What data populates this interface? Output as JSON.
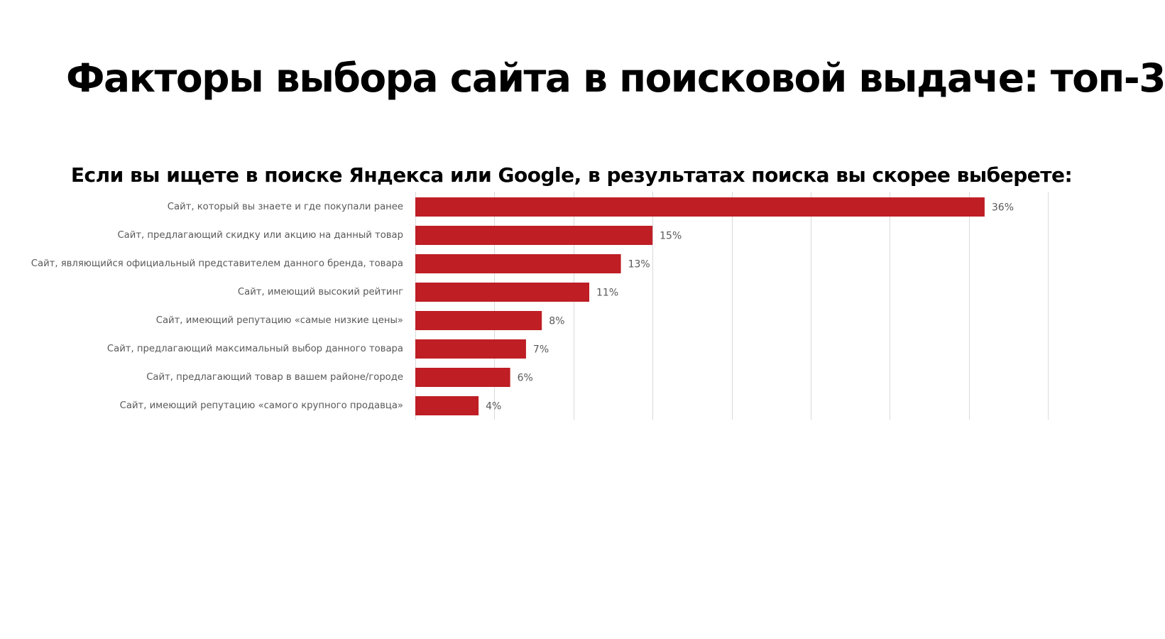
{
  "slide": {
    "title": "Факторы выбора сайта в поисковой выдаче: топ-3"
  },
  "chart_data": {
    "type": "bar",
    "orientation": "horizontal",
    "title": "Если вы ищете в поиске Яндекса или Google, в результатах поиска вы скорее выберете:",
    "categories": [
      "Сайт, который вы знаете и где покупали ранее",
      "Сайт, предлагающий скидку или акцию на данный товар",
      "Сайт, являющийся официальный представителем данного бренда, товара",
      "Сайт, имеющий высокий рейтинг",
      "Сайт, имеющий репутацию «самые низкие цены»",
      "Сайт, предлагающий максимальный выбор данного товара",
      "Сайт, предлагающий товар в вашем районе/городе",
      "Сайт, имеющий репутацию «самого крупного продавца»"
    ],
    "values": [
      36,
      15,
      13,
      11,
      8,
      7,
      6,
      4
    ],
    "value_labels": [
      "36%",
      "15%",
      "13%",
      "11%",
      "8%",
      "7%",
      "6%",
      "4%"
    ],
    "xlim": [
      0,
      40
    ],
    "xlabel": "",
    "ylabel": "",
    "grid": true,
    "legend": "none",
    "colors": {
      "bar": "#BE1E24",
      "grid": "#D9D9D9",
      "category_text": "#595959",
      "value_text": "#595959"
    }
  }
}
